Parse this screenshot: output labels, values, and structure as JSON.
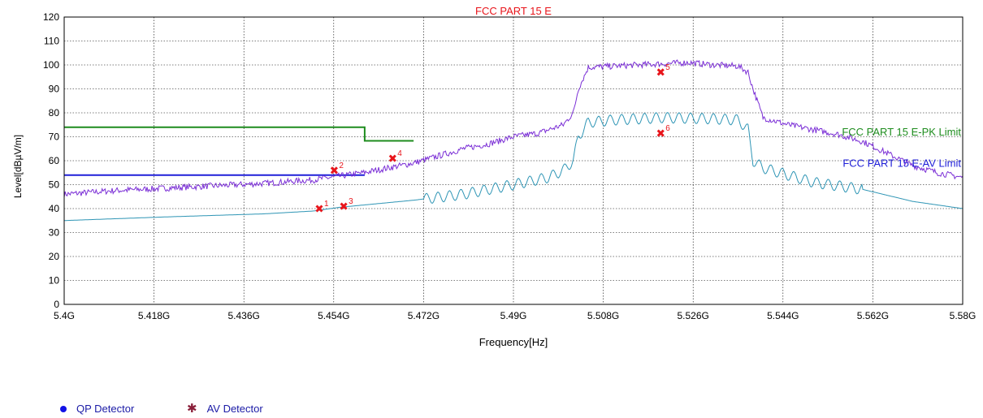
{
  "chart_data": {
    "type": "line",
    "title": "FCC PART 15 E",
    "xlabel": "Frequency[Hz]",
    "ylabel": "Level[dBµV/m]",
    "xlim": [
      5.4,
      5.58
    ],
    "ylim": [
      0,
      120
    ],
    "x_ticks": [
      5.4,
      5.418,
      5.436,
      5.454,
      5.472,
      5.49,
      5.508,
      5.526,
      5.544,
      5.562,
      5.58
    ],
    "x_tick_labels": [
      "5.4G",
      "5.418G",
      "5.436G",
      "5.454G",
      "5.472G",
      "5.49G",
      "5.508G",
      "5.526G",
      "5.544G",
      "5.562G",
      "5.58G"
    ],
    "y_ticks": [
      0,
      10,
      20,
      30,
      40,
      50,
      60,
      70,
      80,
      90,
      100,
      110,
      120
    ],
    "grid": true,
    "limits": [
      {
        "name": "FCC PART 15 E-PK Limit",
        "color": "#1e8c1e",
        "x": [
          5.4,
          5.4602,
          5.4602,
          5.47
        ],
        "y": [
          74,
          74,
          68.3,
          68.3
        ],
        "label_value": [
          5.58,
          70.5
        ]
      },
      {
        "name": "FCC PART 15 E-AV Limit",
        "color": "#2020d8",
        "x": [
          5.4,
          5.4602
        ],
        "y": [
          54,
          54
        ],
        "label_value": [
          5.58,
          57.5
        ]
      }
    ],
    "series": [
      {
        "color": "#7b2fd6",
        "x": [
          5.4,
          5.41,
          5.42,
          5.43,
          5.44,
          5.45,
          5.455,
          5.46,
          5.465,
          5.47,
          5.475,
          5.48,
          5.485,
          5.49,
          5.495,
          5.5,
          5.502,
          5.503,
          5.505,
          5.51,
          5.515,
          5.52,
          5.525,
          5.53,
          5.535,
          5.537,
          5.538,
          5.54,
          5.545,
          5.55,
          5.555,
          5.56,
          5.565,
          5.57,
          5.575,
          5.58
        ],
        "y": [
          46,
          47.5,
          48.5,
          49.5,
          50.5,
          52,
          53.5,
          55,
          57,
          59,
          62,
          65,
          67,
          70,
          71.5,
          75,
          80,
          90,
          99,
          99.5,
          100,
          100.5,
          101,
          100,
          99.5,
          97,
          90,
          78,
          75,
          73,
          71,
          68,
          63,
          58,
          55,
          53
        ],
        "noise": 1.3
      },
      {
        "color": "#2e95b5",
        "x": [
          5.4,
          5.42,
          5.44,
          5.45,
          5.455,
          5.46,
          5.47,
          5.48,
          5.49,
          5.497,
          5.5,
          5.502,
          5.503,
          5.505,
          5.51,
          5.52,
          5.53,
          5.535,
          5.537,
          5.538,
          5.54,
          5.55,
          5.56,
          5.57,
          5.58
        ],
        "y": [
          35,
          36.5,
          37.8,
          39,
          40.5,
          41.5,
          43.5,
          46,
          50,
          53,
          56,
          60,
          70,
          76,
          77,
          78,
          77.5,
          77,
          73,
          60,
          57,
          51,
          48,
          43,
          40
        ],
        "ripple": 2.2,
        "ripple_range": [
          5.472,
          5.56
        ]
      }
    ],
    "markers": [
      {
        "label": "1",
        "x": 5.4511,
        "y": 40,
        "color": "#e8151b"
      },
      {
        "label": "2",
        "x": 5.4541,
        "y": 56,
        "color": "#e8151b"
      },
      {
        "label": "3",
        "x": 5.456,
        "y": 41,
        "color": "#e8151b"
      },
      {
        "label": "4",
        "x": 5.4658,
        "y": 61,
        "color": "#e8151b"
      },
      {
        "label": "5",
        "x": 5.5195,
        "y": 97,
        "color": "#e8151b"
      },
      {
        "label": "6",
        "x": 5.5195,
        "y": 71.5,
        "color": "#e8151b"
      }
    ]
  },
  "legend": {
    "qp": {
      "label": "QP Detector",
      "color": "#1212e6"
    },
    "av": {
      "label": "AV Detector",
      "color": "#8a1f3a"
    }
  },
  "colors": {
    "title": "#e8151b",
    "axis_text": "#000000",
    "grid": "#000000"
  }
}
